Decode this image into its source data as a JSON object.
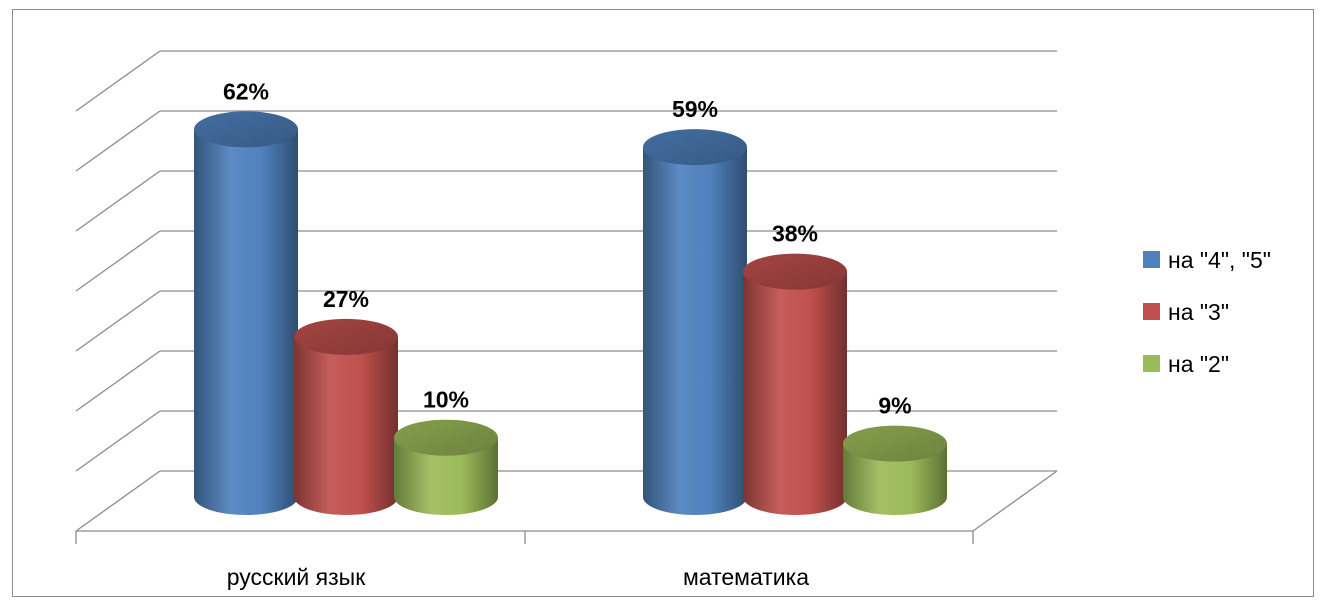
{
  "chart_data": {
    "type": "bar",
    "categories": [
      "русский язык",
      "математика"
    ],
    "series": [
      {
        "name": "на \"4\", \"5\"",
        "values": [
          62,
          59
        ],
        "labels": [
          "62%",
          "59%"
        ],
        "color": "#4f81bd"
      },
      {
        "name": "на \"3\"",
        "values": [
          27,
          38
        ],
        "labels": [
          "27%",
          "38%"
        ],
        "color": "#c0504d"
      },
      {
        "name": "на \"2\"",
        "values": [
          10,
          9
        ],
        "labels": [
          "10%",
          "9%"
        ],
        "color": "#9bbb59"
      }
    ],
    "ylim": [
      0,
      70
    ],
    "grid": true,
    "legend_position": "right",
    "three_d": true
  }
}
